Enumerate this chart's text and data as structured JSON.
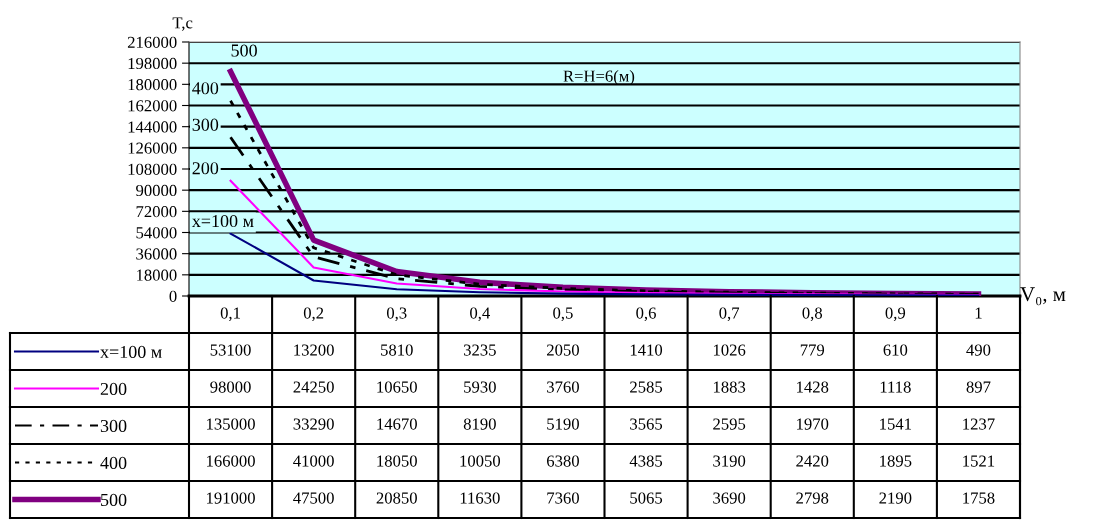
{
  "chart_data": {
    "type": "line",
    "ylabel": "T,c",
    "xlabel": "V₀, м",
    "categories": [
      "0,1",
      "0,2",
      "0,3",
      "0,4",
      "0,5",
      "0,6",
      "0,7",
      "0,8",
      "0,9",
      "1"
    ],
    "series": [
      {
        "name": "x=100 м",
        "color": "#000080",
        "line_style": "solid",
        "values": [
          53100,
          13200,
          5810,
          3235,
          2050,
          1410,
          1026,
          779,
          610,
          490
        ]
      },
      {
        "name": "200",
        "color": "#ff00ff",
        "line_style": "solid",
        "values": [
          98000,
          24250,
          10650,
          5930,
          3760,
          2585,
          1883,
          1428,
          1118,
          897
        ]
      },
      {
        "name": "300",
        "color": "#000000",
        "line_style": "dashed",
        "values": [
          135000,
          33290,
          14670,
          8190,
          5190,
          3565,
          2595,
          1970,
          1541,
          1237
        ]
      },
      {
        "name": "400",
        "color": "#000000",
        "line_style": "dotted",
        "values": [
          166000,
          41000,
          18050,
          10050,
          6380,
          4385,
          3190,
          2420,
          1895,
          1521
        ]
      },
      {
        "name": "500",
        "color": "#800080",
        "line_style": "solid",
        "values": [
          191000,
          47500,
          20850,
          11630,
          7360,
          5065,
          3690,
          2798,
          2190,
          1758
        ]
      }
    ],
    "ylim": [
      0,
      216000
    ],
    "yticks": [
      0,
      18000,
      36000,
      54000,
      72000,
      90000,
      108000,
      126000,
      144000,
      162000,
      180000,
      198000,
      216000
    ],
    "grid": "y",
    "legend": "bottom",
    "data_labels": true,
    "annotations": [
      "R=H=6(м)"
    ]
  }
}
